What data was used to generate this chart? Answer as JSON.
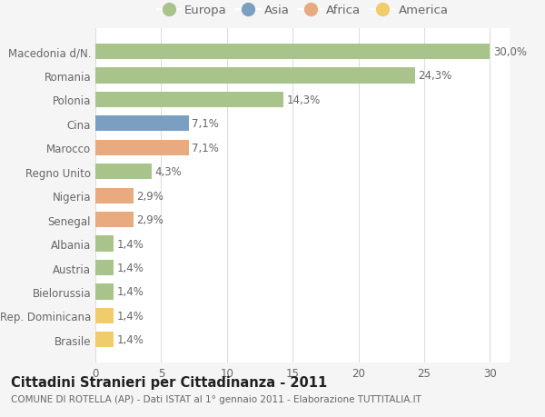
{
  "categories": [
    "Macedonia d/N.",
    "Romania",
    "Polonia",
    "Cina",
    "Marocco",
    "Regno Unito",
    "Nigeria",
    "Senegal",
    "Albania",
    "Austria",
    "Bielorussia",
    "Rep. Dominicana",
    "Brasile"
  ],
  "values": [
    30.0,
    24.3,
    14.3,
    7.1,
    7.1,
    4.3,
    2.9,
    2.9,
    1.4,
    1.4,
    1.4,
    1.4,
    1.4
  ],
  "continents": [
    "Europa",
    "Europa",
    "Europa",
    "Asia",
    "Africa",
    "Europa",
    "Africa",
    "Africa",
    "Europa",
    "Europa",
    "Europa",
    "America",
    "America"
  ],
  "colors": {
    "Europa": "#a8c48a",
    "Asia": "#7b9fc0",
    "Africa": "#e8aa7e",
    "America": "#f0cc6a"
  },
  "legend_order": [
    "Europa",
    "Asia",
    "Africa",
    "America"
  ],
  "title": "Cittadini Stranieri per Cittadinanza - 2011",
  "subtitle": "COMUNE DI ROTELLA (AP) - Dati ISTAT al 1° gennaio 2011 - Elaborazione TUTTITALIA.IT",
  "xlim": [
    0,
    31.5
  ],
  "xticks": [
    0,
    5,
    10,
    15,
    20,
    25,
    30
  ],
  "bg_color": "#f5f5f5",
  "plot_bg_color": "#ffffff",
  "grid_color": "#dddddd",
  "bar_label_color": "#666666",
  "title_color": "#222222",
  "subtitle_color": "#666666",
  "title_fontsize": 10.5,
  "subtitle_fontsize": 7.5,
  "label_fontsize": 8.5,
  "tick_fontsize": 8.5,
  "legend_fontsize": 9.5
}
